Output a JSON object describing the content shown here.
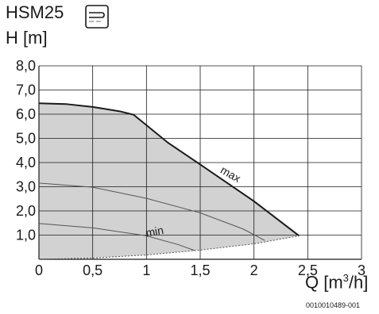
{
  "header": {
    "title": "HSM25",
    "icon": "pump-mode-icon"
  },
  "axes": {
    "ylabel": "H [m]",
    "xlabel_main": "Q [m",
    "xlabel_sup": "3",
    "xlabel_end": "/h]"
  },
  "doc_id": "0010010489-001",
  "chart_data": {
    "type": "line",
    "title": "HSM25",
    "xlabel": "Q [m³/h]",
    "ylabel": "H [m]",
    "xlim": [
      0,
      3
    ],
    "ylim": [
      0,
      8
    ],
    "x_ticks": [
      "0",
      "0,5",
      "1",
      "1,5",
      "2",
      "2,5",
      "3"
    ],
    "y_ticks": [
      "8,0",
      "7,0",
      "6,0",
      "5,0",
      "4,0",
      "3,0",
      "2,0",
      "1,0"
    ],
    "grid": true,
    "series": [
      {
        "name": "max",
        "points": [
          [
            0,
            6.45
          ],
          [
            0.25,
            6.42
          ],
          [
            0.5,
            6.3
          ],
          [
            0.75,
            6.12
          ],
          [
            0.88,
            5.98
          ],
          [
            1.2,
            4.82
          ],
          [
            1.5,
            3.92
          ],
          [
            2.0,
            2.4
          ],
          [
            2.42,
            0.97
          ]
        ]
      },
      {
        "points": [
          [
            0,
            3.15
          ],
          [
            0.5,
            2.98
          ],
          [
            1.0,
            2.52
          ],
          [
            1.5,
            1.92
          ],
          [
            1.9,
            1.25
          ],
          [
            2.1,
            0.78
          ]
        ]
      },
      {
        "points": [
          [
            0,
            1.48
          ],
          [
            0.5,
            1.3
          ],
          [
            1.0,
            0.97
          ],
          [
            1.3,
            0.6
          ],
          [
            1.45,
            0.36
          ]
        ]
      },
      {
        "name": "min",
        "points": [
          [
            0,
            0.0
          ],
          [
            0.5,
            0.05
          ],
          [
            1.0,
            0.18
          ],
          [
            1.5,
            0.38
          ],
          [
            2.0,
            0.64
          ],
          [
            2.42,
            0.97
          ]
        ]
      }
    ],
    "annotations": [
      "max",
      "min"
    ]
  }
}
